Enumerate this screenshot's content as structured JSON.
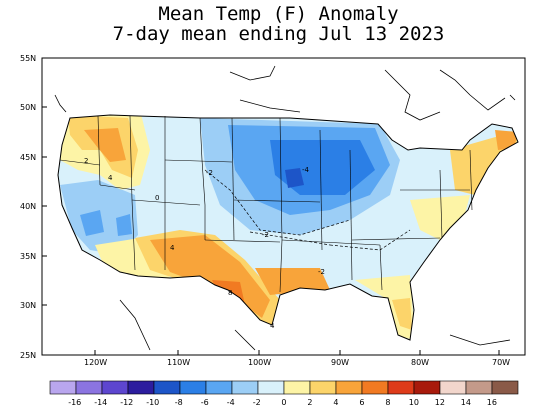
{
  "title_line1": "Mean Temp (F) Anomaly",
  "title_line2": "7-day mean ending Jul 13 2023",
  "lat_labels": [
    "55N",
    "50N",
    "45N",
    "40N",
    "35N",
    "30N",
    "25N"
  ],
  "lon_labels": [
    "120W",
    "110W",
    "100W",
    "90W",
    "80W",
    "70W"
  ],
  "colorbar_ticks": [
    "-16",
    "-14",
    "-12",
    "-10",
    "-8",
    "-6",
    "-4",
    "-2",
    "0",
    "2",
    "4",
    "6",
    "8",
    "10",
    "12",
    "14",
    "16"
  ],
  "colorbar_colors": [
    "#b9a6ee",
    "#8b74e0",
    "#5d46cf",
    "#2c1d9e",
    "#1d55c8",
    "#2b7fe6",
    "#5aa6f2",
    "#9ccef6",
    "#d9f1fb",
    "#fdf4a6",
    "#fcd46a",
    "#f8a43a",
    "#f17a22",
    "#de3b1a",
    "#a81a0c",
    "#f2d6cc",
    "#c49a8a",
    "#8a5a48"
  ],
  "contour_labels": [
    "-2",
    "-2",
    "-4",
    "-2",
    "0",
    "2",
    "4",
    "4",
    "8",
    "4"
  ],
  "colors": {
    "land": "#ffffff",
    "border": "#000000"
  }
}
